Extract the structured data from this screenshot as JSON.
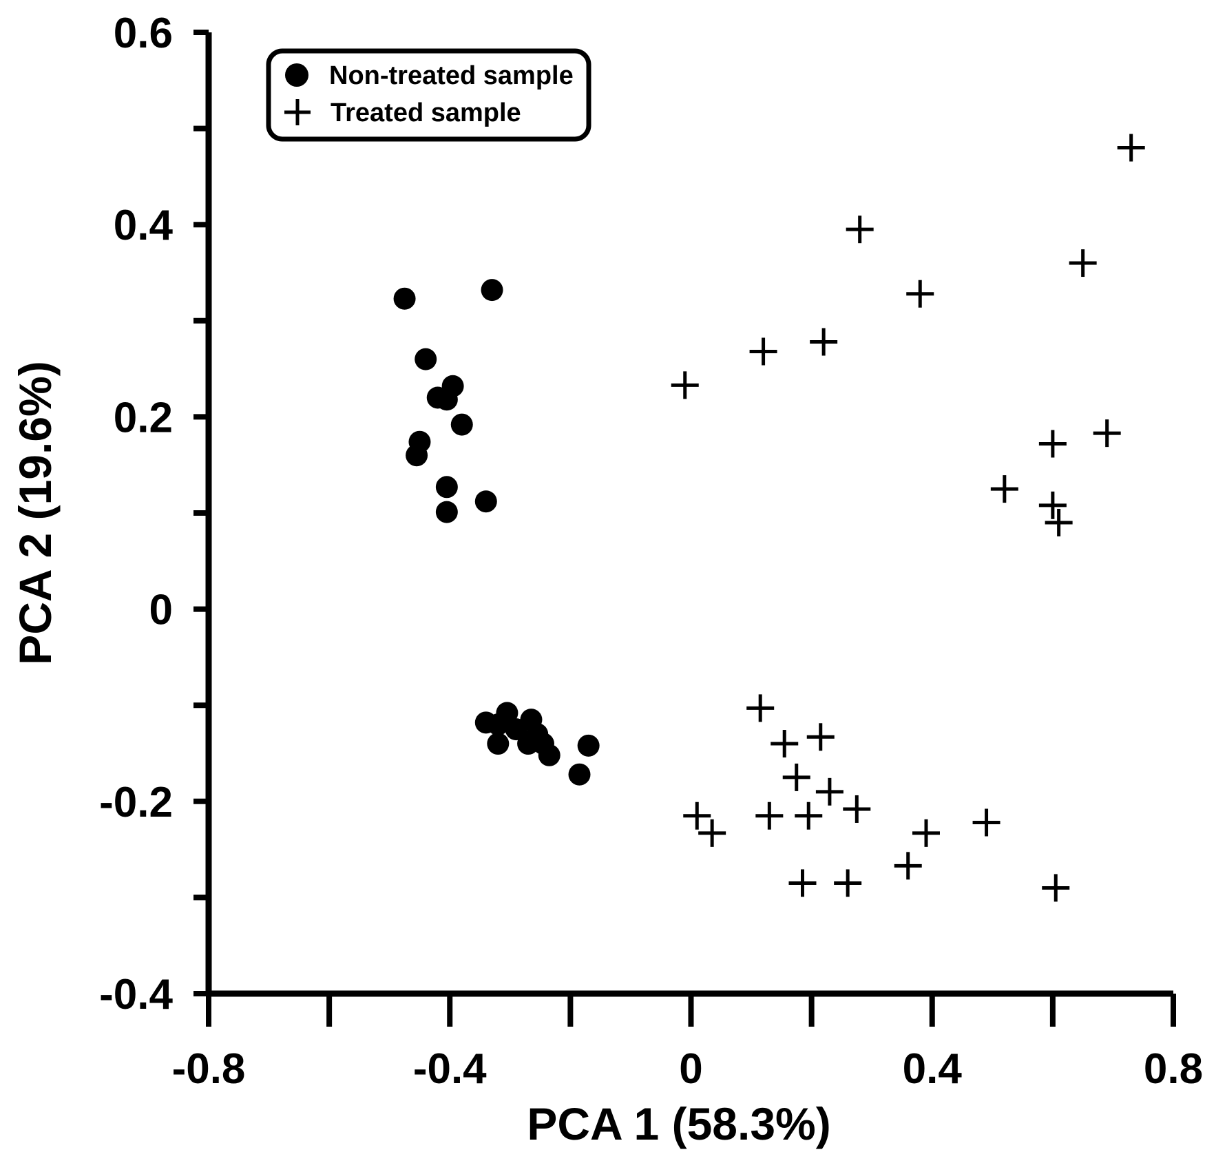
{
  "chart_data": {
    "type": "scatter",
    "xlabel": "PCA 1 (58.3%)",
    "ylabel": "PCA 2 (19.6%)",
    "xlim": [
      -0.8,
      0.8
    ],
    "ylim": [
      -0.4,
      0.6
    ],
    "x_ticks": [
      -0.8,
      -0.6,
      -0.4,
      -0.2,
      0,
      0.2,
      0.4,
      0.6,
      0.8
    ],
    "x_tick_labels": [
      {
        "value": -0.8,
        "label": "-0.8"
      },
      {
        "value": -0.4,
        "label": "-0.4"
      },
      {
        "value": 0,
        "label": "0"
      },
      {
        "value": 0.4,
        "label": "0.4"
      },
      {
        "value": 0.8,
        "label": "0.8"
      }
    ],
    "y_ticks": [
      -0.4,
      -0.3,
      -0.2,
      -0.1,
      0,
      0.1,
      0.2,
      0.3,
      0.4,
      0.5,
      0.6
    ],
    "y_tick_labels": [
      {
        "value": 0.6,
        "label": "0.6"
      },
      {
        "value": 0.4,
        "label": "0.4"
      },
      {
        "value": 0.2,
        "label": "0.2"
      },
      {
        "value": 0,
        "label": "0"
      },
      {
        "value": -0.2,
        "label": "-0.2"
      },
      {
        "value": -0.4,
        "label": "-0.4"
      }
    ],
    "legend_position": "top-left",
    "series": [
      {
        "name": "Non-treated sample",
        "marker": "circle",
        "points": [
          [
            -0.475,
            0.323
          ],
          [
            -0.33,
            0.332
          ],
          [
            -0.44,
            0.26
          ],
          [
            -0.395,
            0.232
          ],
          [
            -0.42,
            0.22
          ],
          [
            -0.405,
            0.218
          ],
          [
            -0.38,
            0.192
          ],
          [
            -0.45,
            0.174
          ],
          [
            -0.455,
            0.16
          ],
          [
            -0.405,
            0.127
          ],
          [
            -0.405,
            0.101
          ],
          [
            -0.34,
            0.112
          ],
          [
            -0.34,
            -0.118
          ],
          [
            -0.32,
            -0.12
          ],
          [
            -0.305,
            -0.108
          ],
          [
            -0.29,
            -0.125
          ],
          [
            -0.265,
            -0.115
          ],
          [
            -0.255,
            -0.13
          ],
          [
            -0.245,
            -0.14
          ],
          [
            -0.27,
            -0.14
          ],
          [
            -0.32,
            -0.14
          ],
          [
            -0.235,
            -0.152
          ],
          [
            -0.17,
            -0.142
          ],
          [
            -0.185,
            -0.172
          ]
        ]
      },
      {
        "name": "Treated sample",
        "marker": "plus",
        "points": [
          [
            0.73,
            0.48
          ],
          [
            0.28,
            0.395
          ],
          [
            0.65,
            0.36
          ],
          [
            0.38,
            0.328
          ],
          [
            0.22,
            0.278
          ],
          [
            0.12,
            0.268
          ],
          [
            -0.01,
            0.233
          ],
          [
            0.69,
            0.183
          ],
          [
            0.6,
            0.172
          ],
          [
            0.52,
            0.125
          ],
          [
            0.6,
            0.108
          ],
          [
            0.61,
            0.09
          ],
          [
            0.115,
            -0.103
          ],
          [
            0.215,
            -0.133
          ],
          [
            0.155,
            -0.14
          ],
          [
            0.175,
            -0.175
          ],
          [
            0.23,
            -0.19
          ],
          [
            0.275,
            -0.208
          ],
          [
            0.195,
            -0.215
          ],
          [
            0.13,
            -0.215
          ],
          [
            0.01,
            -0.215
          ],
          [
            0.035,
            -0.233
          ],
          [
            0.39,
            -0.233
          ],
          [
            0.49,
            -0.222
          ],
          [
            0.36,
            -0.267
          ],
          [
            0.185,
            -0.285
          ],
          [
            0.26,
            -0.285
          ],
          [
            0.605,
            -0.29
          ]
        ]
      }
    ]
  }
}
